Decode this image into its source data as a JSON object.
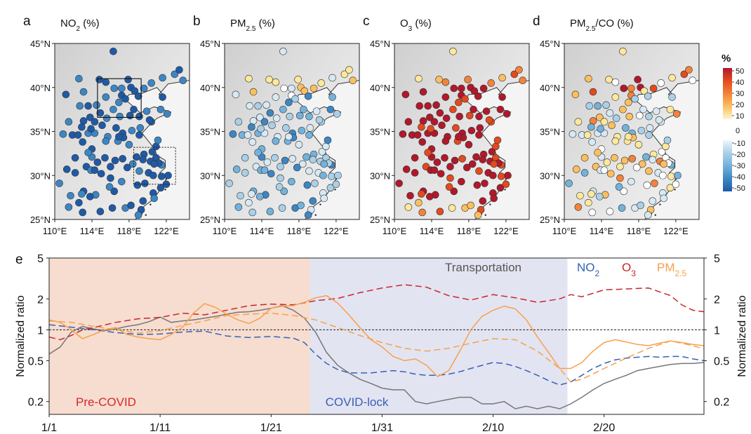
{
  "chart_data": [
    {
      "type": "scatter",
      "panel_letter": "a",
      "title_main": "NO",
      "title_sub": "2",
      "title_tail": " (%)",
      "xticks": [
        "110°E",
        "114°E",
        "118°E",
        "122°E"
      ],
      "yticks": [
        "25°N",
        "30°N",
        "35°N",
        "40°N",
        "45°N"
      ],
      "xlim": [
        110,
        124.5
      ],
      "ylim": [
        25,
        45
      ],
      "typical_change_pct": -45
    },
    {
      "type": "scatter",
      "panel_letter": "b",
      "title_main": "PM",
      "title_sub": "2.5",
      "title_tail": " (%)",
      "xticks": [
        "110°E",
        "114°E",
        "118°E",
        "122°E"
      ],
      "yticks": [
        "25°N",
        "30°N",
        "35°N",
        "40°N",
        "45°N"
      ],
      "xlim": [
        110,
        124.5
      ],
      "ylim": [
        25,
        45
      ],
      "typical_change_pct": -25
    },
    {
      "type": "scatter",
      "panel_letter": "c",
      "title_main": "O",
      "title_sub": "3",
      "title_tail": " (%)",
      "xticks": [
        "110°E",
        "114°E",
        "118°E",
        "122°E"
      ],
      "yticks": [
        "25°N",
        "30°N",
        "35°N",
        "40°N",
        "45°N"
      ],
      "xlim": [
        110,
        124.5
      ],
      "ylim": [
        25,
        45
      ],
      "typical_change_pct": 50
    },
    {
      "type": "scatter",
      "panel_letter": "d",
      "title_main": "PM",
      "title_sub": "2.5",
      "title_tail": "/CO (%)",
      "xticks": [
        "110°E",
        "114°E",
        "118°E",
        "122°E"
      ],
      "yticks": [
        "25°N",
        "30°N",
        "35°N",
        "40°N",
        "45°N"
      ],
      "xlim": [
        110,
        124.5
      ],
      "ylim": [
        25,
        45
      ],
      "typical_change_pct": 0
    },
    {
      "type": "line",
      "panel_letter": "e",
      "ylabel": "Normalized ratio",
      "yscale": "log",
      "ylim": [
        0.15,
        5
      ],
      "yticks": [
        {
          "v": 0.2,
          "label": "0.2"
        },
        {
          "v": 0.5,
          "label": "0.5"
        },
        {
          "v": 1,
          "label": "1"
        },
        {
          "v": 2,
          "label": "2"
        },
        {
          "v": 5,
          "label": "5"
        }
      ],
      "xlim": [
        1,
        60
      ],
      "xticks": [
        {
          "d": 1,
          "label": "1/1"
        },
        {
          "d": 11,
          "label": "1/11"
        },
        {
          "d": 21,
          "label": "1/21"
        },
        {
          "d": 31,
          "label": "1/31"
        },
        {
          "d": 41,
          "label": "2/10"
        },
        {
          "d": 51,
          "label": "2/20"
        }
      ],
      "periods": [
        {
          "label": "Pre-COVID",
          "from": 1,
          "to": 24.5,
          "color": "#f6ddd0",
          "label_color": "#d7262b"
        },
        {
          "label": "COVID-lock",
          "from": 24.5,
          "to": 47.7,
          "color": "#e3e4f1",
          "label_color": "#3561b5"
        }
      ],
      "legend": [
        {
          "main": "Transportation",
          "sub": "",
          "color": "#555555"
        },
        {
          "main": "NO",
          "sub": "2",
          "color": "#3561b5"
        },
        {
          "main": "O",
          "sub": "3",
          "color": "#c8262b"
        },
        {
          "main": "PM",
          "sub": "2.5",
          "color": "#f7a04a"
        }
      ],
      "reference_line": 1,
      "series": [
        {
          "key": "transportation",
          "color": "#777777",
          "dash": "solid",
          "x": [
            1,
            2,
            3,
            4,
            5,
            6,
            7,
            8,
            9,
            10,
            11,
            12,
            13,
            14,
            15,
            16,
            17,
            18,
            19,
            20,
            21,
            22,
            23,
            24,
            25,
            26,
            27,
            28,
            29,
            30,
            31,
            32,
            33,
            34,
            35,
            36,
            37,
            38,
            39,
            40,
            41,
            42,
            43,
            44,
            45,
            46,
            47,
            48,
            49,
            50,
            51,
            52,
            53,
            54,
            55,
            56,
            57,
            58,
            59,
            60
          ],
          "y": [
            0.58,
            0.68,
            0.95,
            1.08,
            1.02,
            0.98,
            1.02,
            1.08,
            1.12,
            1.2,
            1.33,
            1.18,
            1.22,
            1.25,
            1.3,
            1.35,
            1.42,
            1.48,
            1.5,
            1.55,
            1.62,
            1.72,
            1.55,
            1.3,
            0.95,
            0.6,
            0.45,
            0.38,
            0.33,
            0.3,
            0.27,
            0.26,
            0.26,
            0.2,
            0.19,
            0.2,
            0.21,
            0.22,
            0.22,
            0.19,
            0.19,
            0.2,
            0.17,
            0.18,
            0.17,
            0.18,
            0.17,
            0.19,
            0.22,
            0.26,
            0.3,
            0.33,
            0.36,
            0.4,
            0.42,
            0.44,
            0.46,
            0.47,
            0.47,
            0.48
          ]
        },
        {
          "key": "no2",
          "color": "#3561b5",
          "dash": "dashed",
          "x": [
            1,
            3,
            5,
            7,
            9,
            11,
            13,
            15,
            17,
            19,
            21,
            23,
            24,
            25,
            26,
            27,
            28,
            29,
            30,
            31,
            32,
            33,
            34,
            35,
            36,
            37,
            38,
            39,
            40,
            41,
            42,
            43,
            44,
            45,
            46,
            47,
            48,
            49,
            50,
            51,
            52,
            53,
            54,
            55,
            56,
            57,
            58,
            59,
            60
          ],
          "y": [
            1.12,
            1.06,
            1.0,
            0.94,
            0.9,
            0.91,
            0.95,
            0.97,
            0.87,
            0.84,
            0.86,
            0.83,
            0.75,
            0.58,
            0.47,
            0.41,
            0.38,
            0.38,
            0.38,
            0.39,
            0.4,
            0.39,
            0.37,
            0.36,
            0.36,
            0.37,
            0.39,
            0.42,
            0.45,
            0.48,
            0.47,
            0.44,
            0.4,
            0.36,
            0.32,
            0.29,
            0.31,
            0.36,
            0.42,
            0.47,
            0.51,
            0.53,
            0.54,
            0.55,
            0.54,
            0.55,
            0.55,
            0.52,
            0.5
          ]
        },
        {
          "key": "o3",
          "color": "#c8262b",
          "dash": "dashed",
          "x": [
            1,
            2,
            3,
            4,
            5,
            7,
            9,
            11,
            13,
            15,
            17,
            19,
            21,
            23,
            25,
            27,
            29,
            31,
            33,
            35,
            37,
            39,
            41,
            43,
            45,
            47,
            48,
            49,
            51,
            53,
            55,
            57,
            58,
            59,
            60
          ],
          "y": [
            0.85,
            0.8,
            0.88,
            1.0,
            1.05,
            1.18,
            1.28,
            1.32,
            1.45,
            1.4,
            1.55,
            1.72,
            1.78,
            1.75,
            1.92,
            2.02,
            2.3,
            2.55,
            2.75,
            2.6,
            2.15,
            1.95,
            2.2,
            2.05,
            1.85,
            2.0,
            2.2,
            2.1,
            2.45,
            2.5,
            2.55,
            2.15,
            1.75,
            1.55,
            1.5
          ]
        },
        {
          "key": "pm25_dashed",
          "color": "#f7a04a",
          "dash": "dashed",
          "x": [
            1,
            3,
            5,
            7,
            9,
            11,
            13,
            15,
            17,
            19,
            21,
            23,
            25,
            27,
            29,
            31,
            33,
            35,
            37,
            39,
            41,
            43,
            45,
            47,
            48,
            49,
            51,
            53,
            55,
            57,
            59,
            60
          ],
          "y": [
            1.22,
            1.18,
            1.08,
            1.0,
            0.93,
            0.98,
            1.1,
            1.22,
            1.38,
            1.42,
            1.45,
            1.38,
            1.25,
            1.05,
            0.88,
            0.75,
            0.66,
            0.62,
            0.66,
            0.74,
            0.82,
            0.8,
            0.62,
            0.42,
            0.31,
            0.33,
            0.42,
            0.53,
            0.66,
            0.78,
            0.7,
            0.65
          ]
        },
        {
          "key": "pm25_solid",
          "color": "#f7a04a",
          "dash": "solid",
          "x": [
            1,
            2,
            3,
            4,
            5,
            6,
            7,
            8,
            9,
            10,
            11,
            12,
            13,
            14,
            15,
            16,
            17,
            18,
            19,
            20,
            21,
            22,
            23,
            24,
            25,
            26,
            27,
            28,
            29,
            30,
            31,
            32,
            33,
            34,
            35,
            36,
            37,
            38,
            39,
            40,
            41,
            42,
            43,
            44,
            45,
            46,
            47,
            48,
            49,
            50,
            51,
            52,
            53,
            54,
            55,
            56,
            57,
            58,
            59,
            60
          ],
          "y": [
            1.25,
            1.18,
            1.0,
            0.82,
            0.9,
            1.0,
            1.05,
            0.9,
            0.85,
            0.82,
            0.8,
            0.9,
            1.05,
            1.45,
            1.8,
            1.65,
            1.42,
            1.25,
            1.15,
            1.3,
            1.62,
            1.7,
            1.72,
            1.85,
            2.05,
            2.15,
            1.82,
            1.4,
            1.05,
            0.8,
            0.68,
            0.55,
            0.5,
            0.52,
            0.45,
            0.35,
            0.4,
            0.62,
            1.0,
            1.35,
            1.55,
            1.7,
            1.6,
            1.25,
            0.85,
            0.6,
            0.42,
            0.42,
            0.48,
            0.62,
            0.75,
            0.8,
            0.76,
            0.72,
            0.7,
            0.74,
            0.78,
            0.75,
            0.72,
            0.7
          ]
        }
      ]
    }
  ],
  "colorbar": {
    "unit": "%",
    "upper_ticks": [
      "50",
      "40",
      "30",
      "20",
      "10"
    ],
    "upper_values": [
      50,
      40,
      30,
      20,
      10
    ],
    "zero_label": "0",
    "lower_ticks": [
      "-10",
      "-20",
      "-30",
      "-40",
      "-50"
    ],
    "lower_values": [
      -10,
      -20,
      -30,
      -40,
      -50
    ],
    "colors": [
      "#b2182b",
      "#e34a1e",
      "#f4823a",
      "#fcbf60",
      "#fde89b",
      "#ffffff",
      "#d6e9f4",
      "#a9d0e8",
      "#73b2dc",
      "#3d86c4",
      "#1f5aa6"
    ]
  }
}
